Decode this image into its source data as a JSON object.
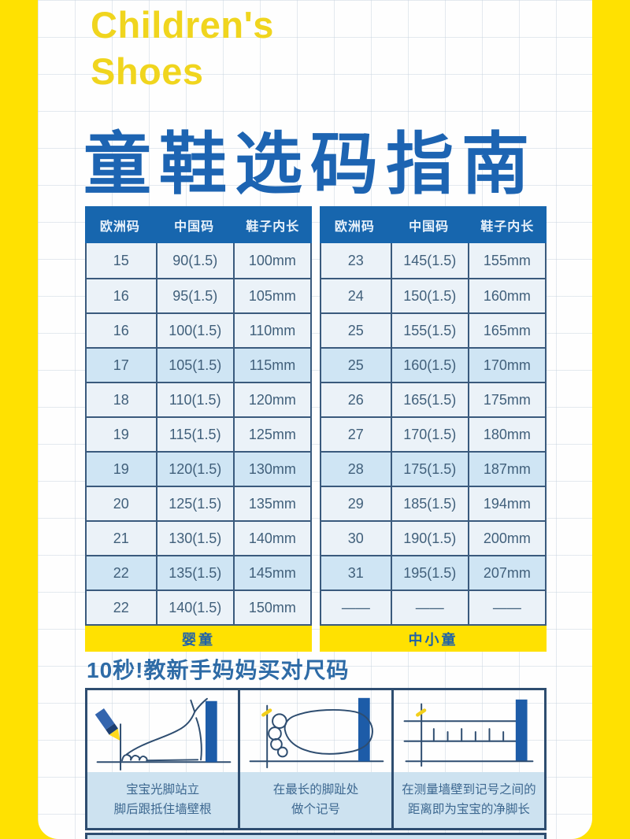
{
  "page": {
    "title_en": "Children's\nShoes",
    "title_zh": "童鞋选码指南",
    "section2_title": "10秒!教新手妈妈买对尺码"
  },
  "colors": {
    "frame_yellow": "#ffe101",
    "title_yellow": "#f0d51e",
    "title_blue": "#1d64b2",
    "table_header_blue": "#1766ae",
    "row_light": "#ebf2f8",
    "row_highlight": "#cfe5f4",
    "cell_text": "#41607b",
    "border_navy": "#2e4d70",
    "caption_bg": "#cde2f0",
    "wall_blue": "#1d5ca8"
  },
  "tables": [
    {
      "headers": [
        "欧洲码",
        "中国码",
        "鞋子内长"
      ],
      "rows": [
        [
          "15",
          "90(1.5)",
          "100mm"
        ],
        [
          "16",
          "95(1.5)",
          "105mm"
        ],
        [
          "16",
          "100(1.5)",
          "110mm"
        ],
        [
          "17",
          "105(1.5)",
          "115mm"
        ],
        [
          "18",
          "110(1.5)",
          "120mm"
        ],
        [
          "19",
          "115(1.5)",
          "125mm"
        ],
        [
          "19",
          "120(1.5)",
          "130mm"
        ],
        [
          "20",
          "125(1.5)",
          "135mm"
        ],
        [
          "21",
          "130(1.5)",
          "140mm"
        ],
        [
          "22",
          "135(1.5)",
          "145mm"
        ],
        [
          "22",
          "140(1.5)",
          "150mm"
        ]
      ],
      "footer": "婴童"
    },
    {
      "headers": [
        "欧洲码",
        "中国码",
        "鞋子内长"
      ],
      "rows": [
        [
          "23",
          "145(1.5)",
          "155mm"
        ],
        [
          "24",
          "150(1.5)",
          "160mm"
        ],
        [
          "25",
          "155(1.5)",
          "165mm"
        ],
        [
          "25",
          "160(1.5)",
          "170mm"
        ],
        [
          "26",
          "165(1.5)",
          "175mm"
        ],
        [
          "27",
          "170(1.5)",
          "180mm"
        ],
        [
          "28",
          "175(1.5)",
          "187mm"
        ],
        [
          "29",
          "185(1.5)",
          "194mm"
        ],
        [
          "30",
          "190(1.5)",
          "200mm"
        ],
        [
          "31",
          "195(1.5)",
          "207mm"
        ],
        [
          "——",
          "——",
          "——"
        ]
      ],
      "footer": "中小童"
    }
  ],
  "steps": [
    {
      "caption_line1": "宝宝光脚站立",
      "caption_line2": "脚后跟抵住墙壁根",
      "illustration": "foot-side-pencil"
    },
    {
      "caption_line1": "在最长的脚趾处",
      "caption_line2": "做个记号",
      "illustration": "foot-top-mark"
    },
    {
      "caption_line1": "在测量墙壁到记号之间的",
      "caption_line2": "距离即为宝宝的净脚长",
      "illustration": "ruler-measure"
    }
  ]
}
